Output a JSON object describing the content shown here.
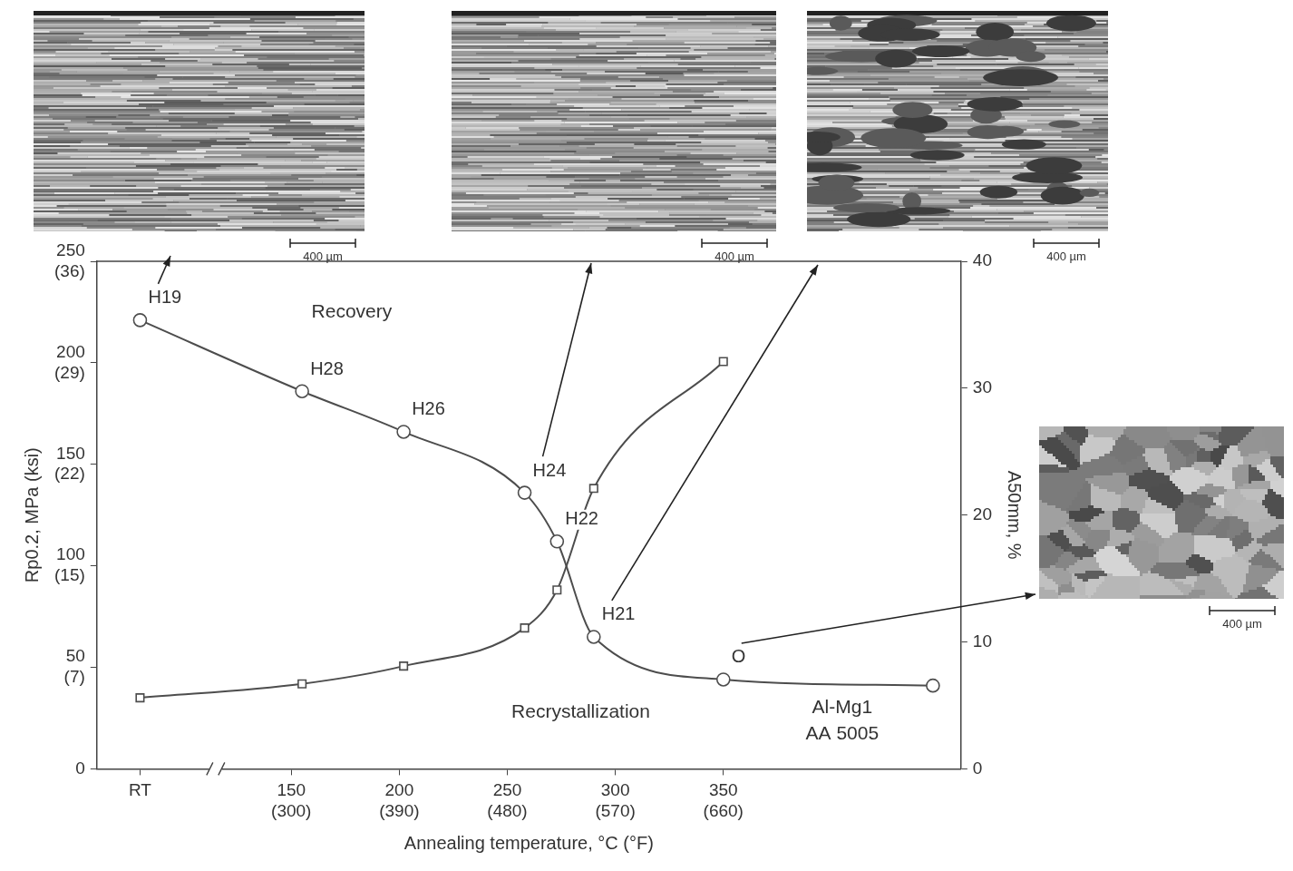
{
  "chart_data": {
    "type": "line",
    "x_label": "Annealing temperature, °C (°F)",
    "y_label": "Rp0.2, MPa (ksi)",
    "y2_label": "A50mm, %",
    "xlim": [
      60,
      460
    ],
    "xticks": [
      {
        "value": 80,
        "label": "RT"
      },
      {
        "value": 150,
        "label": "150\n(300)"
      },
      {
        "value": 200,
        "label": "200\n(390)"
      },
      {
        "value": 250,
        "label": "250\n(480)"
      },
      {
        "value": 300,
        "label": "300\n(570)"
      },
      {
        "value": 350,
        "label": "350\n(660)"
      }
    ],
    "ylim": [
      0,
      250
    ],
    "yticks": [
      0,
      {
        "value": 50,
        "label": "50\n(7)"
      },
      {
        "value": 100,
        "label": "100\n(15)"
      },
      {
        "value": 150,
        "label": "150\n(22)"
      },
      {
        "value": 200,
        "label": "200\n(29)"
      },
      {
        "value": 250,
        "label": "250\n(36)"
      }
    ],
    "y2lim": [
      0,
      40
    ],
    "y2ticks": [
      0,
      10,
      20,
      30,
      40
    ],
    "grid": false,
    "series": [
      {
        "color": "#4d4d4d",
        "marker": "circle",
        "line_style": "solid",
        "x": [
          80,
          155,
          202,
          258,
          273,
          290,
          350,
          447
        ],
        "values": [
          221,
          186,
          166,
          136,
          112,
          65,
          44,
          41
        ],
        "point_labels": [
          "H19",
          "H28",
          "H26",
          "H24",
          "H22",
          "H21",
          "O",
          null
        ]
      },
      {
        "color": "#4d4d4d",
        "marker": "square",
        "line_style": "solid",
        "axis": "y2",
        "x": [
          80,
          155,
          202,
          258,
          273,
          290,
          350
        ],
        "values": [
          5.6,
          6.7,
          8.1,
          11.1,
          14.1,
          22.1,
          32.1
        ]
      }
    ],
    "annotations": [
      {
        "text": "Recovery",
        "x": 178,
        "y": 225
      },
      {
        "text": "Recrystallization",
        "x": 284,
        "y": 28
      },
      {
        "text": "Al-Mg1",
        "x": 405,
        "y": 30
      },
      {
        "text": "AA 5005",
        "x": 405,
        "y": 17
      }
    ],
    "micrographs": [
      {
        "state": "H19",
        "scale_bar": "400 µm"
      },
      {
        "state": "H24",
        "scale_bar": "400 µm"
      },
      {
        "state": "H21",
        "scale_bar": "400 µm"
      },
      {
        "state": "O",
        "scale_bar": "400 µm"
      }
    ]
  }
}
